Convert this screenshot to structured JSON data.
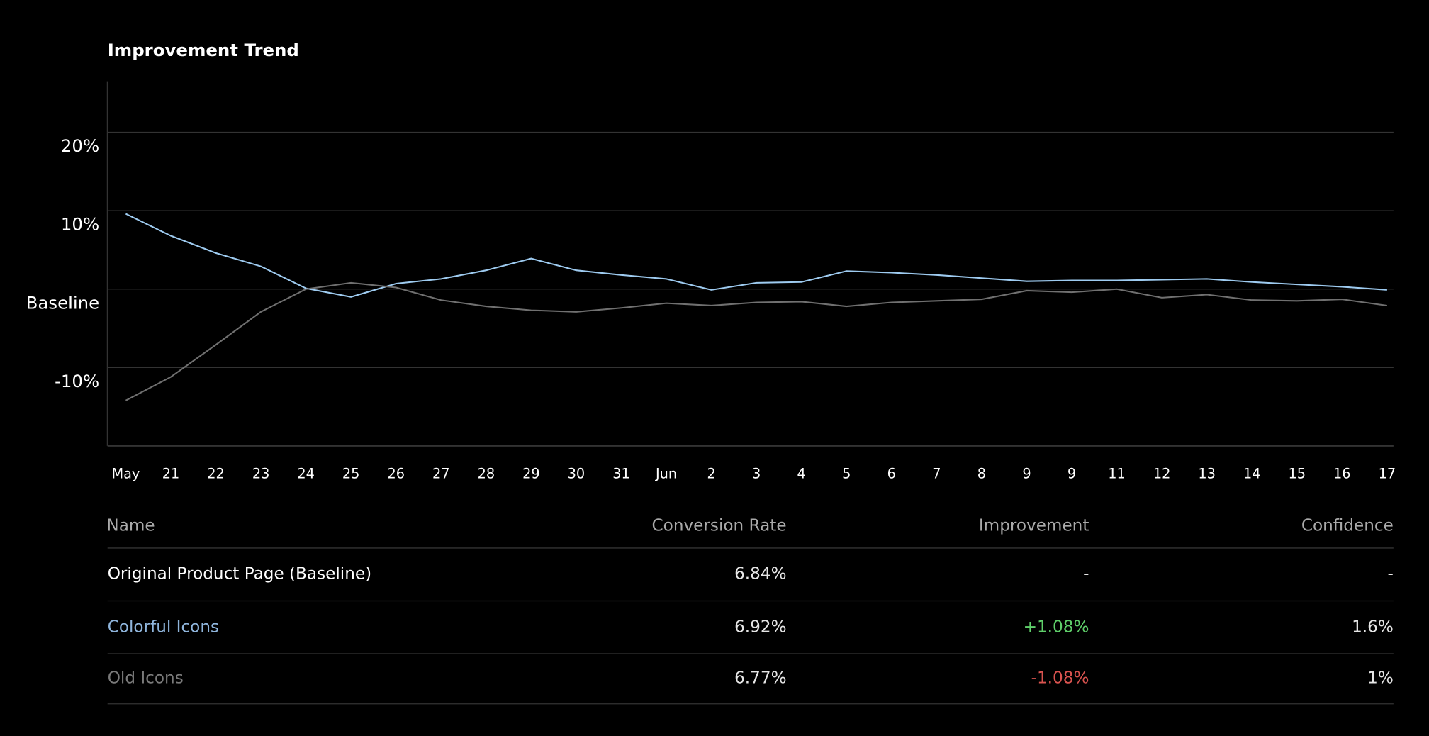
{
  "chart_data": {
    "type": "line",
    "title": "Improvement Trend",
    "categories": [
      "May",
      "21",
      "22",
      "23",
      "24",
      "25",
      "26",
      "27",
      "28",
      "29",
      "30",
      "31",
      "Jun",
      "2",
      "3",
      "4",
      "5",
      "6",
      "7",
      "8",
      "9",
      "9",
      "11",
      "12",
      "13",
      "14",
      "15",
      "16",
      "17"
    ],
    "series": [
      {
        "name": "Colorful Icons",
        "color": "#9ecbf0",
        "values": [
          9.6,
          6.8,
          4.6,
          2.9,
          0.1,
          -1.0,
          0.7,
          1.3,
          2.4,
          3.9,
          2.4,
          1.8,
          1.3,
          -0.1,
          0.8,
          0.9,
          2.3,
          2.1,
          1.8,
          1.4,
          1.0,
          1.1,
          1.1,
          1.2,
          1.3,
          0.9,
          0.6,
          0.3,
          -0.1
        ]
      },
      {
        "name": "Old Icons",
        "color": "#707070",
        "values": [
          -14.2,
          -11.2,
          -7.1,
          -2.9,
          0.0,
          0.8,
          0.2,
          -1.4,
          -2.2,
          -2.7,
          -2.9,
          -2.4,
          -1.8,
          -2.1,
          -1.7,
          -1.6,
          -2.2,
          -1.7,
          -1.5,
          -1.3,
          -0.2,
          -0.4,
          0.0,
          -1.1,
          -0.7,
          -1.4,
          -1.5,
          -1.3,
          -2.1
        ]
      }
    ],
    "ylim": [
      -20,
      26.5
    ],
    "yticks": [
      {
        "value": 20,
        "label": "20%"
      },
      {
        "value": 10,
        "label": "10%"
      },
      {
        "value": 0,
        "label": "Baseline"
      },
      {
        "value": -10,
        "label": "-10%"
      }
    ],
    "grid": true
  },
  "table": {
    "header": [
      "Name",
      "Conversion Rate",
      "Improvement",
      "Confidence"
    ],
    "rows": [
      [
        "Original Product Page (Baseline)",
        "6.84%",
        "-",
        "-"
      ],
      [
        "Colorful Icons",
        "6.92%",
        "+1.08%",
        "1.6%"
      ],
      [
        "Old Icons",
        "6.77%",
        "-1.08%",
        "1%"
      ]
    ]
  }
}
